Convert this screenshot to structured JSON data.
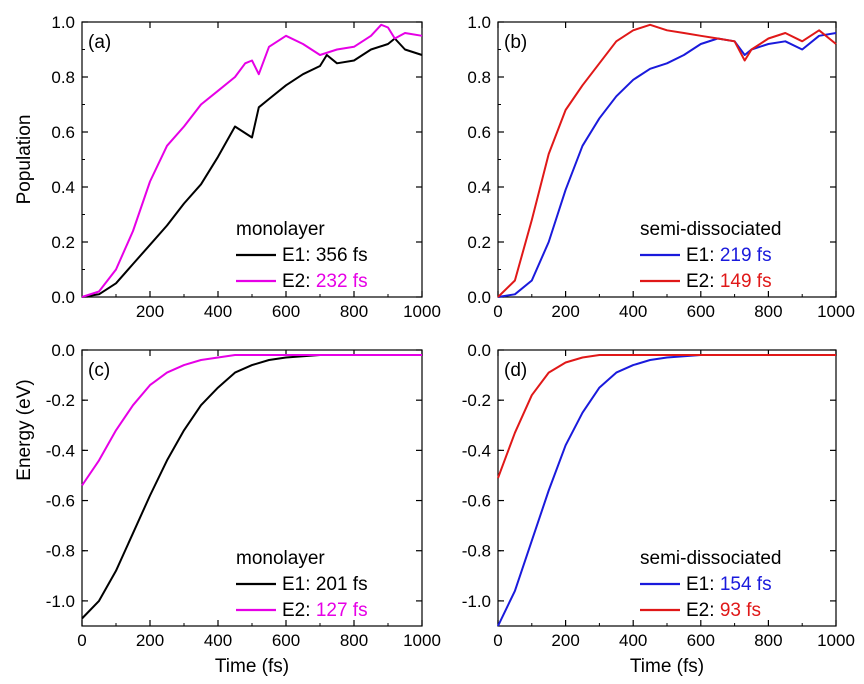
{
  "colors": {
    "black": "#000000",
    "magenta": "#e600e6",
    "blue": "#1a1adc",
    "red": "#e01818"
  },
  "chart_data": [
    {
      "type": "line",
      "panel_label": "(a)",
      "ylabel": "Population",
      "xlabel": "",
      "xlim": [
        0,
        1000
      ],
      "ylim": [
        0.0,
        1.0
      ],
      "xticks": [
        "200",
        "400",
        "600",
        "800",
        "1000"
      ],
      "yticks": [
        "0.0",
        "0.2",
        "0.4",
        "0.6",
        "0.8",
        "1.0"
      ],
      "legend_title": "monolayer",
      "legend_position": "bottom-right",
      "series": [
        {
          "name": "E1",
          "label_prefix": "E1: ",
          "label_value": "356 fs",
          "color": "#000000",
          "value_color": "#000000",
          "x": [
            0,
            50,
            100,
            150,
            200,
            250,
            300,
            350,
            400,
            450,
            500,
            520,
            550,
            600,
            650,
            700,
            720,
            750,
            800,
            850,
            900,
            920,
            950,
            1000
          ],
          "y": [
            0.0,
            0.01,
            0.05,
            0.12,
            0.19,
            0.26,
            0.34,
            0.41,
            0.51,
            0.62,
            0.58,
            0.69,
            0.72,
            0.77,
            0.81,
            0.84,
            0.88,
            0.85,
            0.86,
            0.9,
            0.92,
            0.94,
            0.9,
            0.88
          ]
        },
        {
          "name": "E2",
          "label_prefix": "E2: ",
          "label_value": "232 fs",
          "color": "#e600e6",
          "value_color": "#e600e6",
          "x": [
            0,
            50,
            100,
            150,
            200,
            250,
            300,
            350,
            400,
            450,
            480,
            500,
            520,
            550,
            600,
            650,
            700,
            750,
            800,
            850,
            880,
            900,
            920,
            950,
            1000
          ],
          "y": [
            0.0,
            0.02,
            0.1,
            0.24,
            0.42,
            0.55,
            0.62,
            0.7,
            0.75,
            0.8,
            0.85,
            0.86,
            0.81,
            0.91,
            0.95,
            0.92,
            0.88,
            0.9,
            0.91,
            0.95,
            0.99,
            0.98,
            0.94,
            0.96,
            0.95
          ]
        }
      ]
    },
    {
      "type": "line",
      "panel_label": "(b)",
      "ylabel": "",
      "xlabel": "",
      "xlim": [
        0,
        1000
      ],
      "ylim": [
        0.0,
        1.0
      ],
      "xticks": [
        "0",
        "200",
        "400",
        "600",
        "800",
        "1000"
      ],
      "yticks": [
        "0.0",
        "0.2",
        "0.4",
        "0.6",
        "0.8",
        "1.0"
      ],
      "legend_title": "semi-dissociated",
      "legend_position": "bottom-right",
      "series": [
        {
          "name": "E1",
          "label_prefix": "E1: ",
          "label_value": "219 fs",
          "color": "#1a1adc",
          "value_color": "#1a1adc",
          "x": [
            0,
            50,
            100,
            150,
            200,
            250,
            300,
            350,
            400,
            450,
            500,
            550,
            600,
            650,
            700,
            730,
            750,
            800,
            850,
            900,
            950,
            1000
          ],
          "y": [
            0.0,
            0.01,
            0.06,
            0.2,
            0.39,
            0.55,
            0.65,
            0.73,
            0.79,
            0.83,
            0.85,
            0.88,
            0.92,
            0.94,
            0.93,
            0.88,
            0.9,
            0.92,
            0.93,
            0.9,
            0.95,
            0.96
          ]
        },
        {
          "name": "E2",
          "label_prefix": "E2: ",
          "label_value": "149 fs",
          "color": "#e01818",
          "value_color": "#e01818",
          "x": [
            0,
            50,
            100,
            150,
            200,
            250,
            300,
            350,
            400,
            450,
            500,
            550,
            600,
            650,
            700,
            730,
            750,
            800,
            850,
            900,
            950,
            1000
          ],
          "y": [
            0.0,
            0.06,
            0.28,
            0.52,
            0.68,
            0.77,
            0.85,
            0.93,
            0.97,
            0.99,
            0.97,
            0.96,
            0.95,
            0.94,
            0.93,
            0.86,
            0.9,
            0.94,
            0.96,
            0.93,
            0.97,
            0.92
          ]
        }
      ]
    },
    {
      "type": "line",
      "panel_label": "(c)",
      "ylabel": "Energy (eV)",
      "xlabel": "Time (fs)",
      "xlim": [
        0,
        1000
      ],
      "ylim": [
        -1.1,
        0.0
      ],
      "xticks": [
        "0",
        "200",
        "400",
        "600",
        "800",
        "1000"
      ],
      "yticks": [
        "0.0",
        "-0.2",
        "-0.4",
        "-0.6",
        "-0.8",
        "-1.0"
      ],
      "legend_title": "monolayer",
      "legend_position": "bottom-right",
      "series": [
        {
          "name": "E1",
          "label_prefix": "E1: ",
          "label_value": "201 fs",
          "color": "#000000",
          "value_color": "#000000",
          "x": [
            0,
            50,
            100,
            150,
            200,
            250,
            300,
            350,
            400,
            450,
            500,
            550,
            600,
            650,
            700,
            750,
            800,
            900,
            1000
          ],
          "y": [
            -1.07,
            -1.0,
            -0.88,
            -0.73,
            -0.58,
            -0.44,
            -0.32,
            -0.22,
            -0.15,
            -0.09,
            -0.06,
            -0.04,
            -0.03,
            -0.025,
            -0.02,
            -0.02,
            -0.02,
            -0.02,
            -0.02
          ]
        },
        {
          "name": "E2",
          "label_prefix": "E2: ",
          "label_value": "127 fs",
          "color": "#e600e6",
          "value_color": "#e600e6",
          "x": [
            0,
            50,
            100,
            150,
            200,
            250,
            300,
            350,
            400,
            450,
            500,
            600,
            700,
            800,
            1000
          ],
          "y": [
            -0.54,
            -0.44,
            -0.32,
            -0.22,
            -0.14,
            -0.09,
            -0.06,
            -0.04,
            -0.03,
            -0.02,
            -0.02,
            -0.02,
            -0.02,
            -0.02,
            -0.02
          ]
        }
      ]
    },
    {
      "type": "line",
      "panel_label": "(d)",
      "ylabel": "",
      "xlabel": "Time (fs)",
      "xlim": [
        0,
        1000
      ],
      "ylim": [
        -1.1,
        0.0
      ],
      "xticks": [
        "0",
        "200",
        "400",
        "600",
        "800",
        "1000"
      ],
      "yticks": [
        "0.0",
        "-0.2",
        "-0.4",
        "-0.6",
        "-0.8",
        "-1.0"
      ],
      "legend_title": "semi-dissociated",
      "legend_position": "bottom-right",
      "series": [
        {
          "name": "E1",
          "label_prefix": "E1: ",
          "label_value": "154 fs",
          "color": "#1a1adc",
          "value_color": "#1a1adc",
          "x": [
            0,
            50,
            100,
            150,
            200,
            250,
            300,
            350,
            400,
            450,
            500,
            550,
            600,
            700,
            800,
            900,
            1000
          ],
          "y": [
            -1.1,
            -0.96,
            -0.76,
            -0.56,
            -0.38,
            -0.25,
            -0.15,
            -0.09,
            -0.06,
            -0.04,
            -0.03,
            -0.025,
            -0.02,
            -0.02,
            -0.02,
            -0.02,
            -0.02
          ]
        },
        {
          "name": "E2",
          "label_prefix": "E2: ",
          "label_value": "93 fs",
          "color": "#e01818",
          "value_color": "#e01818",
          "x": [
            0,
            50,
            100,
            150,
            200,
            250,
            300,
            350,
            400,
            500,
            600,
            800,
            1000
          ],
          "y": [
            -0.51,
            -0.33,
            -0.18,
            -0.09,
            -0.05,
            -0.03,
            -0.02,
            -0.02,
            -0.02,
            -0.02,
            -0.02,
            -0.02,
            -0.02
          ]
        }
      ]
    }
  ]
}
